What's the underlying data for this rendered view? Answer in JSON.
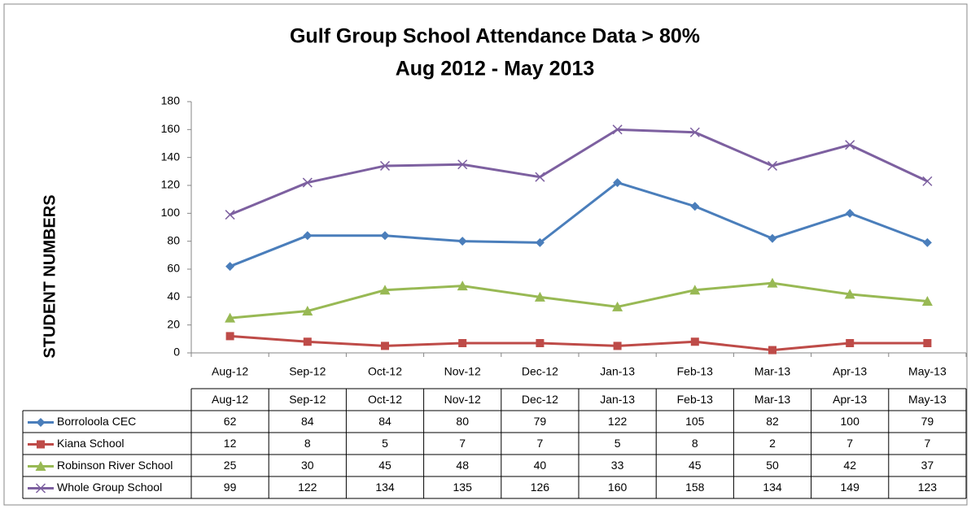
{
  "chart_data": {
    "type": "line",
    "title": "Gulf Group School Attendance Data > 80%",
    "subtitle": "Aug 2012 - May 2013",
    "y_label": "STUDENT NUMBERS",
    "categories": [
      "Aug-12",
      "Sep-12",
      "Oct-12",
      "Nov-12",
      "Dec-12",
      "Jan-13",
      "Feb-13",
      "Mar-13",
      "Apr-13",
      "May-13"
    ],
    "series": [
      {
        "name": "Borroloola CEC",
        "color": "#4a7ebb",
        "marker": "diamond",
        "values": [
          62,
          84,
          84,
          80,
          79,
          122,
          105,
          82,
          100,
          79
        ]
      },
      {
        "name": "Kiana School",
        "color": "#be4b48",
        "marker": "square",
        "values": [
          12,
          8,
          5,
          7,
          7,
          5,
          8,
          2,
          7,
          7
        ]
      },
      {
        "name": "Robinson River School",
        "color": "#98b954",
        "marker": "triangle",
        "values": [
          25,
          30,
          45,
          48,
          40,
          33,
          45,
          50,
          42,
          37
        ]
      },
      {
        "name": "Whole Group School",
        "color": "#7d60a0",
        "marker": "x",
        "values": [
          99,
          122,
          134,
          135,
          126,
          160,
          158,
          134,
          149,
          123
        ]
      }
    ],
    "ylim": [
      0,
      180
    ],
    "yticks": [
      0,
      20,
      40,
      60,
      80,
      100,
      120,
      140,
      160,
      180
    ],
    "grid": false,
    "data_table": true
  }
}
